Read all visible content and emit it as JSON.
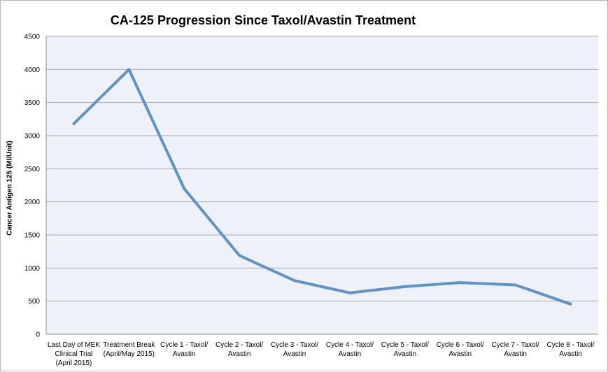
{
  "chart_data": {
    "type": "line",
    "title": "CA-125 Progression Since Taxol/Avastin Treatment",
    "xlabel": "",
    "ylabel": "Cancer Antigen 125 (MI/Unit)",
    "ylim": [
      0,
      4500
    ],
    "yticks": [
      0,
      500,
      1000,
      1500,
      2000,
      2500,
      3000,
      3500,
      4000,
      4500
    ],
    "grid": true,
    "legend": "none",
    "categories": [
      [
        "Last Day of MEK",
        "Clinical Trial",
        "(April 2015)"
      ],
      [
        "Treatment Break",
        "(April/May 2015)"
      ],
      [
        "Cycle 1 - Taxol/",
        "Avastin"
      ],
      [
        "Cycle 2 - Taxol/",
        "Avastin"
      ],
      [
        "Cycle 3 - Taxol/",
        "Avastin"
      ],
      [
        "Cycle 4 - Taxol/",
        "Avastin"
      ],
      [
        "Cycle 5 - Taxol/",
        "Avastin"
      ],
      [
        "Cycle 6 - Taxol/",
        "Avastin"
      ],
      [
        "Cycle 7 - Taxol/",
        "Avastin"
      ],
      [
        "Cycle 8 - Taxol/",
        "Avastin"
      ]
    ],
    "series": [
      {
        "values": [
          3180,
          4000,
          2200,
          1190,
          810,
          625,
          720,
          780,
          745,
          455
        ]
      }
    ],
    "colors": {
      "line": "#5b93cc",
      "plot_bg": "#eef1f7",
      "grid": "#a9a9a9"
    }
  }
}
